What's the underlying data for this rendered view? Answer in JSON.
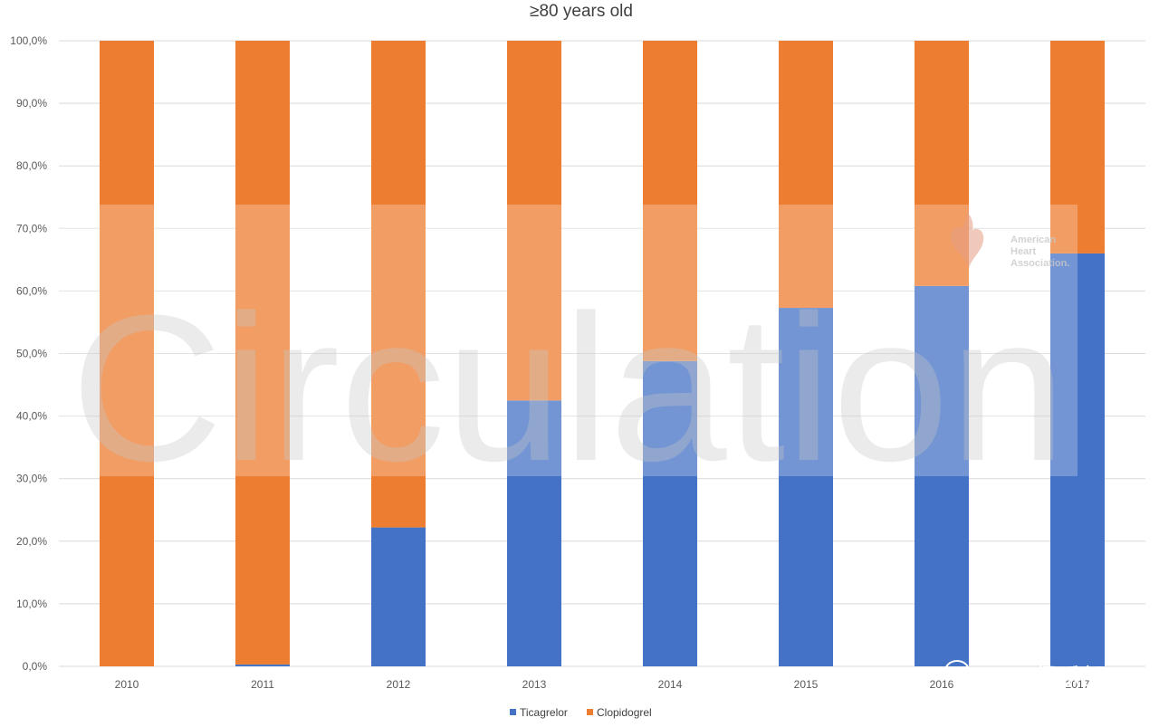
{
  "chart_data": {
    "type": "bar",
    "stacked": true,
    "title": "≥80 years old",
    "categories": [
      "2010",
      "2011",
      "2012",
      "2013",
      "2014",
      "2015",
      "2016",
      "2017"
    ],
    "series": [
      {
        "name": "Ticagrelor",
        "color": "#4472C4",
        "values": [
          0.0,
          0.3,
          22.2,
          42.5,
          48.8,
          57.3,
          60.8,
          66.0
        ]
      },
      {
        "name": "Clopidogrel",
        "color": "#ED7D31",
        "values": [
          100.0,
          99.7,
          77.8,
          57.5,
          51.2,
          42.7,
          39.2,
          34.0
        ]
      }
    ],
    "ylim": [
      0,
      100
    ],
    "yticks": [
      "0,0%",
      "10,0%",
      "20,0%",
      "30,0%",
      "40,0%",
      "50,0%",
      "60,0%",
      "70,0%",
      "80,0%",
      "90,0%",
      "100,0%"
    ],
    "xlabel": "",
    "ylabel": "",
    "grid": true,
    "legend_position": "bottom"
  },
  "watermarks": {
    "journal": "Circulation",
    "logo_text": [
      "American",
      "Heart",
      "Association."
    ],
    "wechat": "SVN俱乐部"
  },
  "colors": {
    "watermark_overlay": "#ffffff",
    "gridline": "#d9d9d9"
  }
}
